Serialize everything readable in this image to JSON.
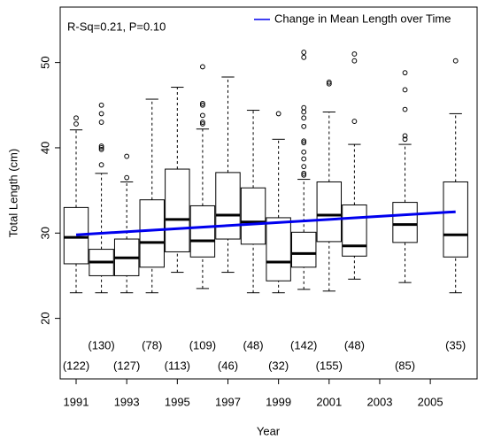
{
  "chart_data": {
    "type": "boxplot",
    "annotation": "R-Sq=0.21, P=0.10",
    "x_label": "Year",
    "y_label": "Total Length (cm)",
    "x": [
      1991,
      1992,
      1993,
      1994,
      1995,
      1996,
      1997,
      1998,
      1999,
      2000,
      2001,
      2002,
      2004,
      2006
    ],
    "sample_size_labels": [
      "(122)",
      "(130)",
      "(127)",
      "(78)",
      "(113)",
      "(109)",
      "(46)",
      "(48)",
      "(32)",
      "(142)",
      "(155)",
      "(48)",
      "(85)",
      "(35)"
    ],
    "boxes": [
      {
        "whislo": 23,
        "q1": 26.4,
        "med": 29.5,
        "q3": 33.0,
        "whishi": 42.1,
        "fliers": [
          43.5,
          42.8
        ]
      },
      {
        "whislo": 23,
        "q1": 25.0,
        "med": 26.6,
        "q3": 28.1,
        "whishi": 37.0,
        "fliers": [
          45,
          44,
          43,
          40.2,
          40,
          39.8,
          38
        ]
      },
      {
        "whislo": 23,
        "q1": 25.0,
        "med": 27.1,
        "q3": 29.3,
        "whishi": 36.0,
        "fliers": [
          39,
          36.5
        ]
      },
      {
        "whislo": 23,
        "q1": 26.0,
        "med": 28.9,
        "q3": 33.9,
        "whishi": 45.7,
        "fliers": []
      },
      {
        "whislo": 25.4,
        "q1": 27.8,
        "med": 31.6,
        "q3": 37.5,
        "whishi": 47.1,
        "fliers": []
      },
      {
        "whislo": 23.5,
        "q1": 27.2,
        "med": 29.1,
        "q3": 33.2,
        "whishi": 42.2,
        "fliers": [
          49.5,
          45.2,
          45,
          43.8,
          43,
          42.8
        ]
      },
      {
        "whislo": 25.4,
        "q1": 29.3,
        "med": 32.1,
        "q3": 37.1,
        "whishi": 48.3,
        "fliers": []
      },
      {
        "whislo": 23,
        "q1": 28.7,
        "med": 31.3,
        "q3": 35.3,
        "whishi": 44.4,
        "fliers": []
      },
      {
        "whislo": 23,
        "q1": 24.4,
        "med": 26.6,
        "q3": 31.8,
        "whishi": 41.0,
        "fliers": [
          44
        ]
      },
      {
        "whislo": 23.4,
        "q1": 26.0,
        "med": 27.6,
        "q3": 30.1,
        "whishi": 36.3,
        "fliers": [
          51.2,
          50.6,
          44.7,
          44.2,
          43.5,
          42.5,
          40.8,
          40.6,
          39.5,
          38.7,
          37.8,
          37,
          36.8
        ]
      },
      {
        "whislo": 23.2,
        "q1": 29.0,
        "med": 32.1,
        "q3": 36.0,
        "whishi": 44.2,
        "fliers": [
          47.7,
          47.5
        ]
      },
      {
        "whislo": 24.6,
        "q1": 27.3,
        "med": 28.5,
        "q3": 33.3,
        "whishi": 40.4,
        "fliers": [
          51,
          50.2,
          43.1
        ]
      },
      {
        "whislo": 24.2,
        "q1": 28.9,
        "med": 31.0,
        "q3": 33.6,
        "whishi": 40.4,
        "fliers": [
          48.8,
          46.8,
          44.5,
          41.4,
          41
        ]
      },
      {
        "whislo": 23,
        "q1": 27.2,
        "med": 29.8,
        "q3": 36.0,
        "whishi": 44.0,
        "fliers": [
          50.2
        ]
      }
    ],
    "trend": {
      "name": "Change in Mean Length over Time",
      "color": "#0000ee",
      "x": [
        1991,
        2006
      ],
      "values": [
        29.8,
        32.5
      ]
    },
    "xlim": [
      1990.37,
      2006.85
    ],
    "xticks": [
      1991,
      1993,
      1995,
      1997,
      1999,
      2001,
      2003,
      2005
    ],
    "ylim": [
      12.9,
      56.5
    ],
    "yticks": [
      20,
      30,
      40,
      50
    ],
    "legend": "top-right"
  }
}
